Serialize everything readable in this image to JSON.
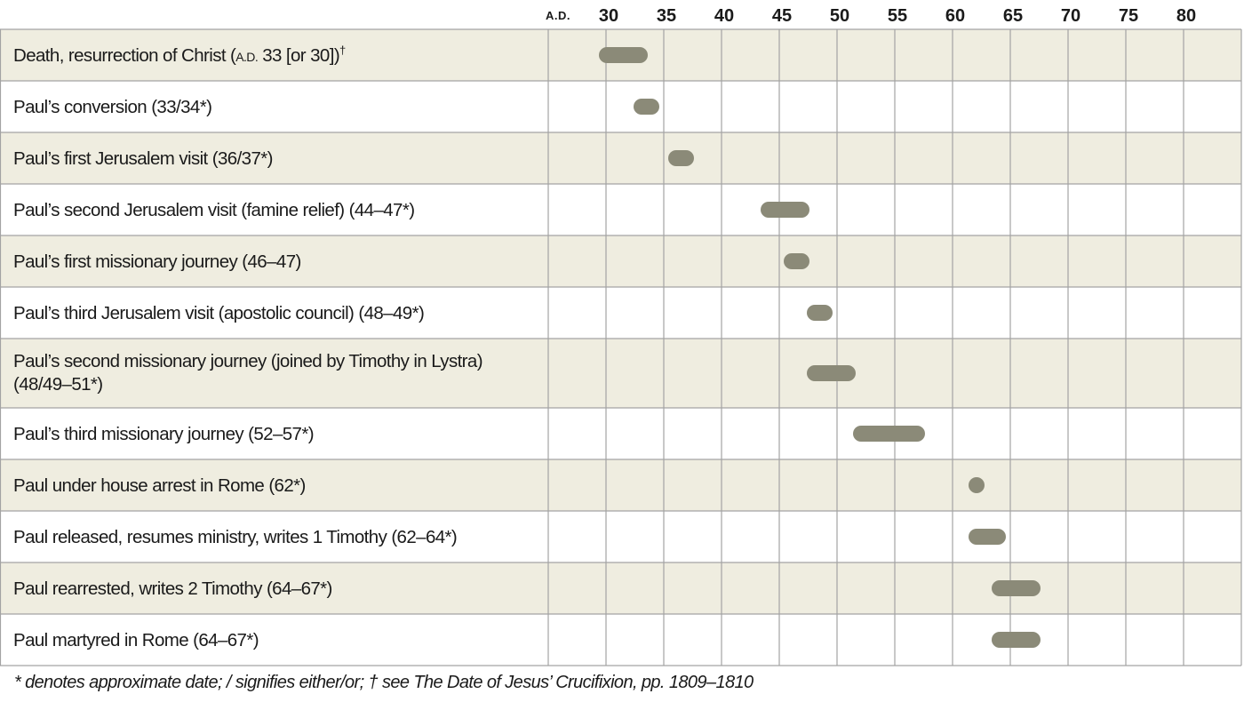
{
  "chart_data": {
    "type": "timeline",
    "era_label": "A.D.",
    "ticks": [
      "30",
      "35",
      "40",
      "45",
      "50",
      "55",
      "60",
      "65",
      "70",
      "75",
      "80"
    ],
    "xlim": [
      25,
      85
    ],
    "colors": {
      "bar": "#8b8a78",
      "row_shaded": "#efede0",
      "grid": "#a3a3a3"
    },
    "rows": [
      {
        "label": "Death, resurrection of Christ (",
        "label_sc": "a.d.",
        "label_rest": " 33 [or 30])",
        "sup": "†",
        "start": 30,
        "end": 33
      },
      {
        "label": "Paul’s conversion (33/34*)",
        "start": 33,
        "end": 34
      },
      {
        "label": "Paul’s first Jerusalem visit (36/37*)",
        "start": 36,
        "end": 37
      },
      {
        "label": "Paul’s second Jerusalem visit (famine relief) (44–47*)",
        "start": 44,
        "end": 47
      },
      {
        "label": "Paul’s first missionary journey (46–47)",
        "start": 46,
        "end": 47
      },
      {
        "label": "Paul’s third Jerusalem visit (apostolic council) (48–49*)",
        "start": 48,
        "end": 49
      },
      {
        "label": "Paul’s second missionary journey (joined by Timothy in Lystra)",
        "label2": "(48/49–51*)",
        "start": 48,
        "end": 51
      },
      {
        "label": "Paul’s third missionary journey (52–57*)",
        "start": 52,
        "end": 57
      },
      {
        "label": "Paul under house arrest in Rome (62*)",
        "start": 62,
        "end": 62
      },
      {
        "label": "Paul released, resumes ministry, writes 1 Timothy (62–64*)",
        "start": 62,
        "end": 64
      },
      {
        "label": "Paul rearrested, writes 2 Timothy (64–67*)",
        "start": 64,
        "end": 67
      },
      {
        "label": "Paul martyred in Rome (64–67*)",
        "start": 64,
        "end": 67
      }
    ],
    "footnote": "* denotes approximate date; / signifies either/or; † see The Date of Jesus’ Crucifixion, pp. 1809–1810"
  }
}
